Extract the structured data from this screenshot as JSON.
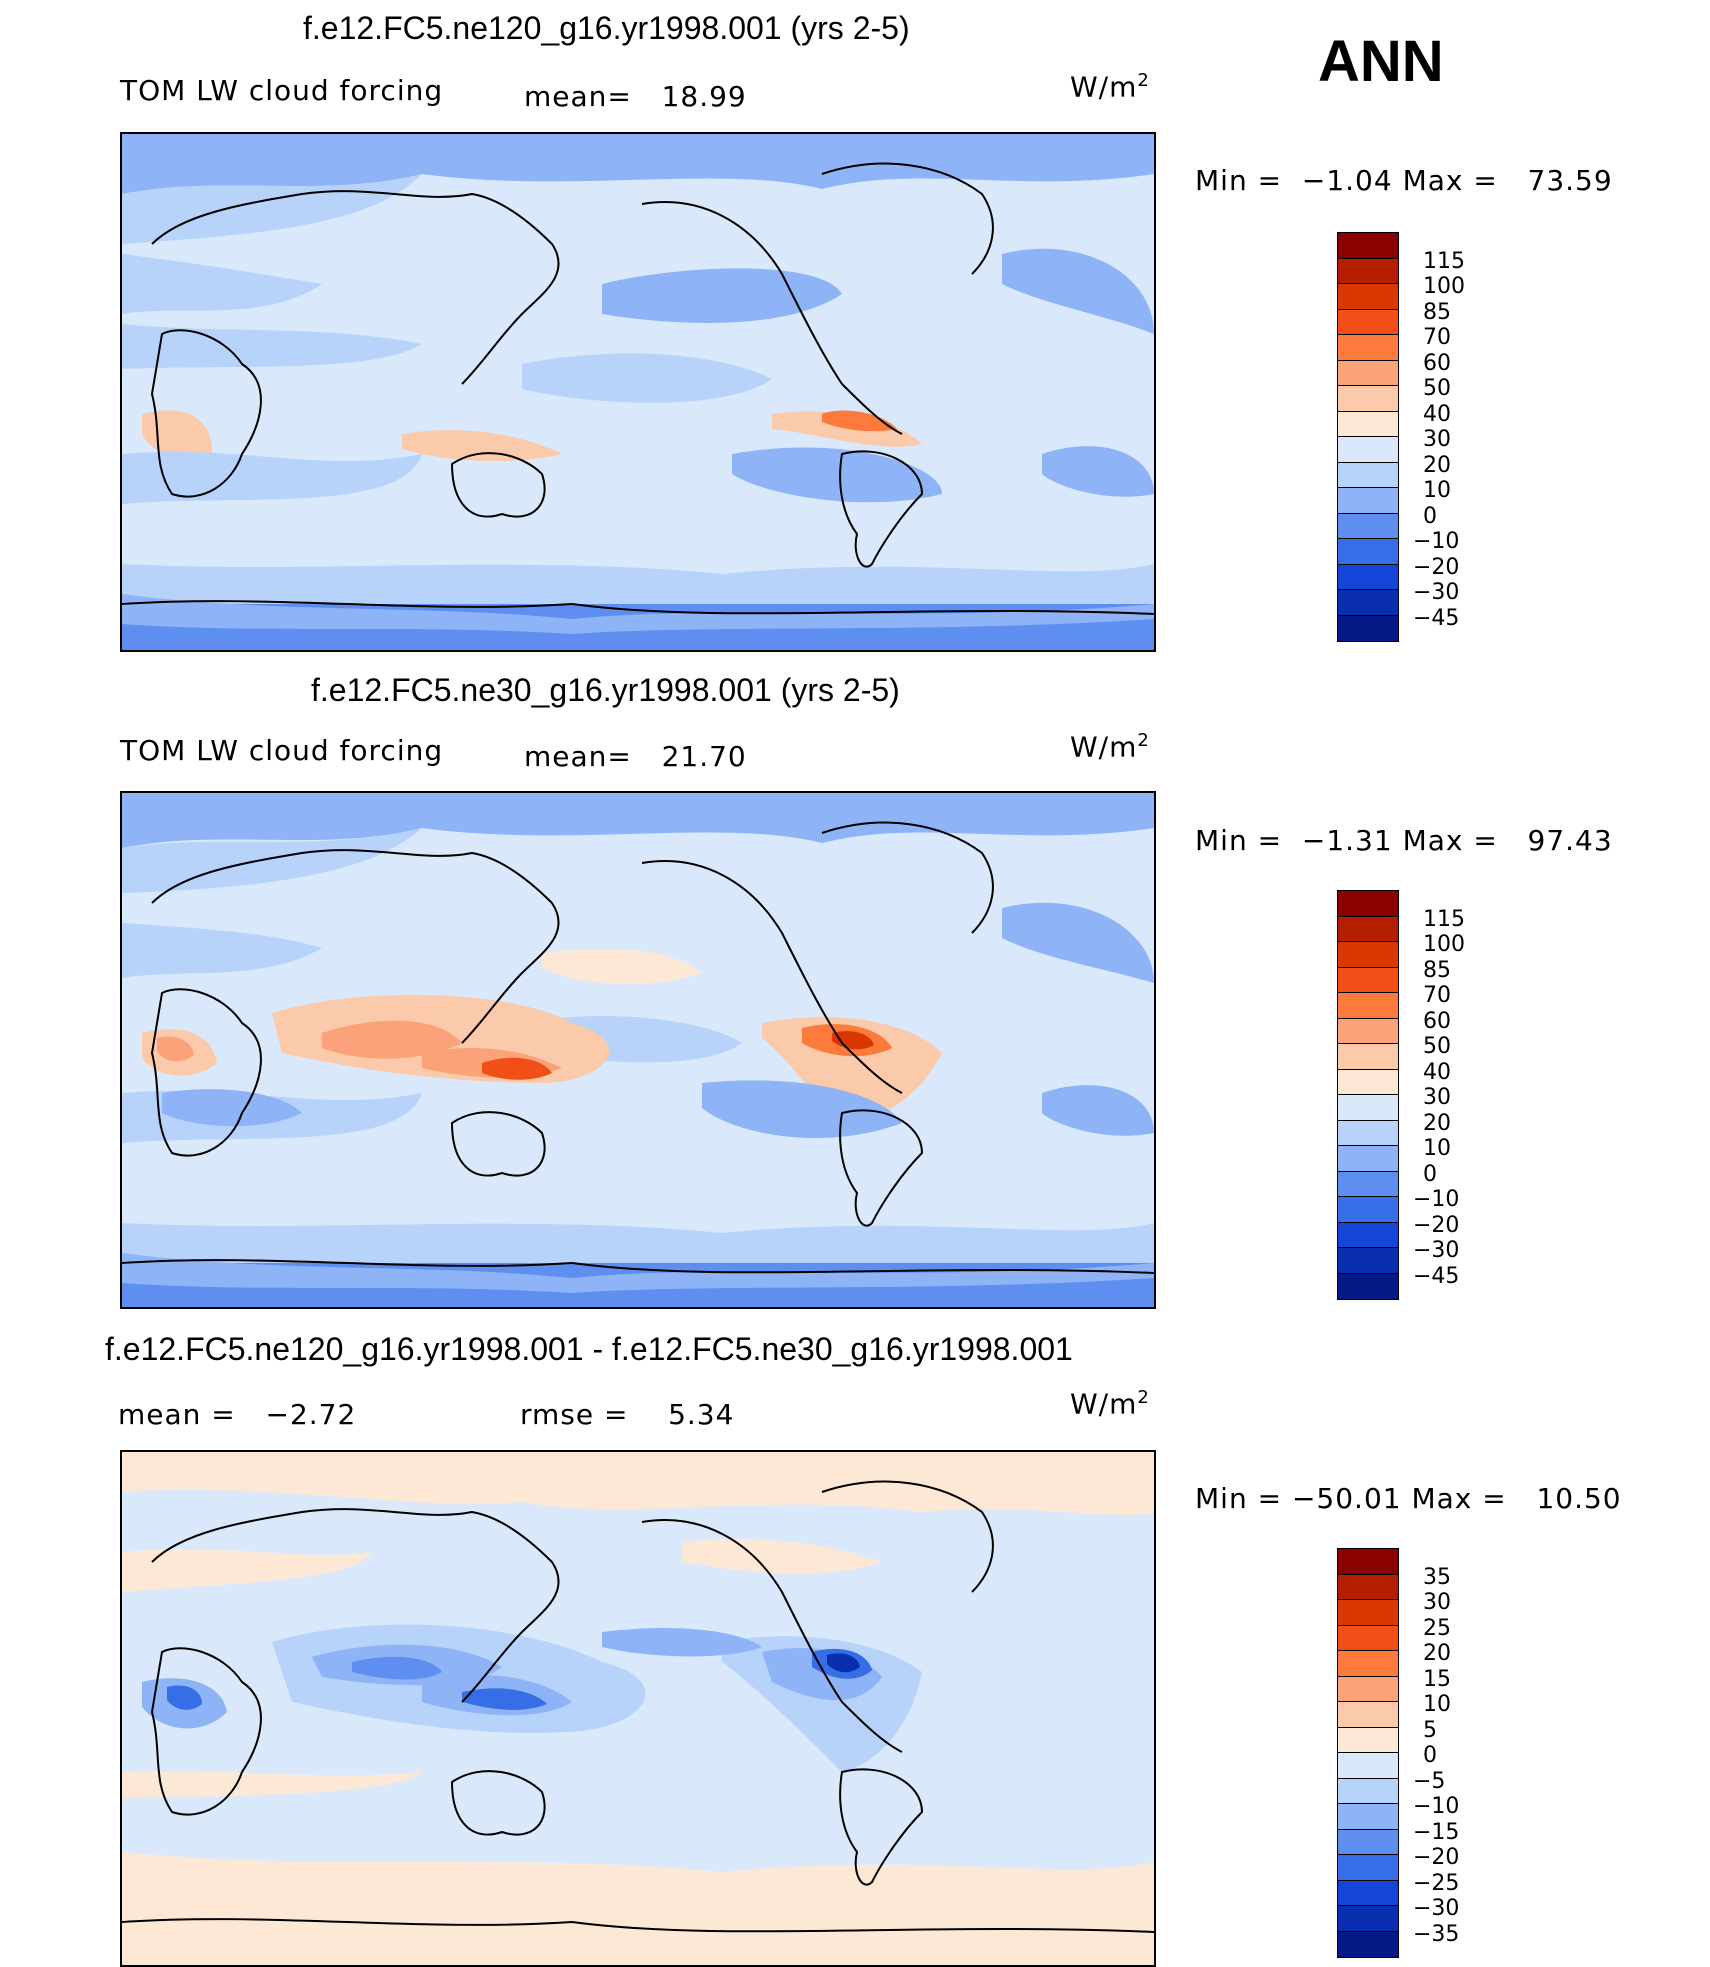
{
  "season": "ANN",
  "panels": [
    {
      "title": "f.e12.FC5.ne120_g16.yr1998.001 (yrs 2-5)",
      "left_label": "TOM LW cloud forcing",
      "stat_label": "mean=",
      "stat_value": "18.99",
      "units_base": "W/m",
      "units_exp": "2",
      "min_label": "Min =",
      "min_value": "−1.04",
      "max_label": "Max =",
      "max_value": "73.59",
      "colorbar": {
        "labels": [
          "115",
          "100",
          "85",
          "70",
          "60",
          "50",
          "40",
          "30",
          "20",
          "10",
          "0",
          "−10",
          "−20",
          "−30",
          "−45"
        ],
        "colors": [
          "#8b0000",
          "#b51f00",
          "#d93600",
          "#f24f18",
          "#fb7a3c",
          "#fba27a",
          "#fbcaaa",
          "#fde8d6",
          "#d9e9fb",
          "#b8d3fa",
          "#8fb3f7",
          "#5e8ff0",
          "#356ee6",
          "#1545d6",
          "#0a2eb0",
          "#061a87"
        ]
      },
      "background_color": "#d4e6fb"
    },
    {
      "title": "f.e12.FC5.ne30_g16.yr1998.001 (yrs 2-5)",
      "left_label": "TOM LW cloud forcing",
      "stat_label": "mean=",
      "stat_value": "21.70",
      "units_base": "W/m",
      "units_exp": "2",
      "min_label": "Min =",
      "min_value": "−1.31",
      "max_label": "Max =",
      "max_value": "97.43",
      "colorbar": {
        "labels": [
          "115",
          "100",
          "85",
          "70",
          "60",
          "50",
          "40",
          "30",
          "20",
          "10",
          "0",
          "−10",
          "−20",
          "−30",
          "−45"
        ],
        "colors": [
          "#8b0000",
          "#b51f00",
          "#d93600",
          "#f24f18",
          "#fb7a3c",
          "#fba27a",
          "#fbcaaa",
          "#fde8d6",
          "#d9e9fb",
          "#b8d3fa",
          "#8fb3f7",
          "#5e8ff0",
          "#356ee6",
          "#1545d6",
          "#0a2eb0",
          "#061a87"
        ]
      },
      "background_color": "#d4e6fb"
    },
    {
      "title": "f.e12.FC5.ne120_g16.yr1998.001 - f.e12.FC5.ne30_g16.yr1998.001",
      "left_label": "mean =",
      "left_value": "−2.72",
      "stat_label": "rmse =",
      "stat_value": "5.34",
      "units_base": "W/m",
      "units_exp": "2",
      "min_label": "Min =",
      "min_value": "−50.01",
      "max_label": "Max =",
      "max_value": "10.50",
      "colorbar": {
        "labels": [
          "35",
          "30",
          "25",
          "20",
          "15",
          "10",
          "5",
          "0",
          "−5",
          "−10",
          "−15",
          "−20",
          "−25",
          "−30",
          "−35"
        ],
        "colors": [
          "#8b0000",
          "#b51f00",
          "#d93600",
          "#f24f18",
          "#fb7a3c",
          "#fba27a",
          "#fbcaaa",
          "#fde8d6",
          "#d9e9fb",
          "#b8d3fa",
          "#8fb3f7",
          "#5e8ff0",
          "#356ee6",
          "#1545d6",
          "#0a2eb0",
          "#061a87"
        ]
      },
      "background_color": "#fde8d6"
    }
  ]
}
